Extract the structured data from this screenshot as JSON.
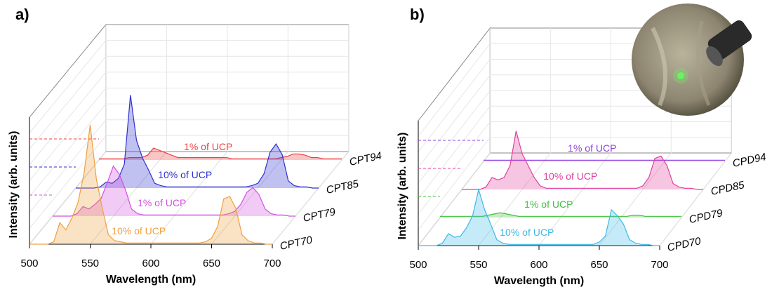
{
  "chart_data": [
    {
      "type": "waterfall",
      "panel": "a)",
      "xlabel": "Wavelength (nm)",
      "ylabel": "Intensity (arb. units)",
      "xlim": [
        500,
        700
      ],
      "xticks": [
        500,
        550,
        600,
        650,
        700
      ],
      "x": [
        500,
        505,
        510,
        515,
        520,
        525,
        530,
        535,
        540,
        545,
        550,
        555,
        560,
        565,
        570,
        575,
        580,
        585,
        590,
        595,
        600,
        605,
        610,
        615,
        620,
        625,
        630,
        635,
        640,
        645,
        650,
        655,
        660,
        665,
        670,
        675,
        680,
        685,
        690,
        695,
        700
      ],
      "series": [
        {
          "name": "CPT70",
          "annotation": "10% of UCP",
          "color": "#f0a040",
          "values": [
            0,
            0,
            0,
            0,
            0.02,
            0.18,
            0.12,
            0.22,
            0.35,
            0.6,
            1.0,
            0.55,
            0.3,
            0.08,
            0.03,
            0.02,
            0.01,
            0.01,
            0.01,
            0.01,
            0.01,
            0.01,
            0.01,
            0.01,
            0.01,
            0.01,
            0.01,
            0.01,
            0.01,
            0.02,
            0.05,
            0.15,
            0.38,
            0.4,
            0.3,
            0.08,
            0.03,
            0.01,
            0.01,
            0,
            0
          ]
        },
        {
          "name": "CPT79",
          "annotation": "1% of UCP",
          "color": "#d050e0",
          "values": [
            0,
            0,
            0,
            0,
            0.02,
            0.08,
            0.06,
            0.1,
            0.15,
            0.28,
            0.42,
            0.35,
            0.22,
            0.06,
            0.02,
            0.01,
            0.01,
            0.01,
            0.01,
            0.01,
            0.01,
            0.01,
            0.01,
            0.01,
            0.01,
            0.01,
            0.01,
            0.01,
            0.01,
            0.02,
            0.04,
            0.1,
            0.2,
            0.24,
            0.18,
            0.06,
            0.02,
            0.01,
            0.01,
            0,
            0
          ]
        },
        {
          "name": "CPT85",
          "annotation": "10% of UCP",
          "color": "#3030d0",
          "values": [
            0,
            0,
            0,
            0,
            0.01,
            0.05,
            0.04,
            0.08,
            0.2,
            0.78,
            0.4,
            0.25,
            0.15,
            0.04,
            0.02,
            0.01,
            0.01,
            0.01,
            0.01,
            0.01,
            0.01,
            0.01,
            0.01,
            0.01,
            0.01,
            0.01,
            0.01,
            0.01,
            0.01,
            0.02,
            0.04,
            0.12,
            0.3,
            0.37,
            0.28,
            0.06,
            0.02,
            0.01,
            0.01,
            0,
            0
          ]
        },
        {
          "name": "CPT94",
          "annotation": "1% of UCP",
          "color": "#f04040",
          "values": [
            0.01,
            0.01,
            0.01,
            0.01,
            0.01,
            0.02,
            0.02,
            0.02,
            0.04,
            0.1,
            0.08,
            0.06,
            0.04,
            0.02,
            0.02,
            0.02,
            0.02,
            0.02,
            0.02,
            0.02,
            0.02,
            0.02,
            0.01,
            0.01,
            0.01,
            0.01,
            0.01,
            0.01,
            0.01,
            0.01,
            0.02,
            0.03,
            0.05,
            0.05,
            0.04,
            0.02,
            0.02,
            0.01,
            0.01,
            0.01,
            0.01
          ]
        }
      ]
    },
    {
      "type": "waterfall",
      "panel": "b)",
      "xlabel": "Wavelength (nm)",
      "ylabel": "Intensity (arb. units)",
      "xlim": [
        500,
        700
      ],
      "xticks": [
        500,
        550,
        600,
        650,
        700
      ],
      "x": [
        500,
        505,
        510,
        515,
        520,
        525,
        530,
        535,
        540,
        545,
        550,
        555,
        560,
        565,
        570,
        575,
        580,
        585,
        590,
        595,
        600,
        605,
        610,
        615,
        620,
        625,
        630,
        635,
        640,
        645,
        650,
        655,
        660,
        665,
        670,
        675,
        680,
        685,
        690,
        695,
        700
      ],
      "series": [
        {
          "name": "CPD70",
          "annotation": "10% of UCP",
          "color": "#40b8e8",
          "values": [
            0,
            0,
            0,
            0,
            0.02,
            0.1,
            0.07,
            0.08,
            0.15,
            0.25,
            0.47,
            0.3,
            0.18,
            0.05,
            0.02,
            0.01,
            0.01,
            0.01,
            0.01,
            0.01,
            0.01,
            0.01,
            0.01,
            0.01,
            0.01,
            0.01,
            0.01,
            0.01,
            0.01,
            0.01,
            0.03,
            0.08,
            0.3,
            0.25,
            0.18,
            0.05,
            0.02,
            0.01,
            0.01,
            0,
            0
          ]
        },
        {
          "name": "CPD79",
          "annotation": "1% of UCP",
          "color": "#40c040",
          "values": [
            0.01,
            0.01,
            0.01,
            0.01,
            0.01,
            0.01,
            0.01,
            0.01,
            0.02,
            0.03,
            0.04,
            0.03,
            0.02,
            0.01,
            0.01,
            0.01,
            0.01,
            0.01,
            0.01,
            0.01,
            0.01,
            0.01,
            0.01,
            0.01,
            0.01,
            0.01,
            0.01,
            0.01,
            0.01,
            0.01,
            0.01,
            0.01,
            0.02,
            0.02,
            0.01,
            0.01,
            0.01,
            0.01,
            0.01,
            0.01,
            0.01
          ]
        },
        {
          "name": "CPD85",
          "annotation": "10% of UCP",
          "color": "#e040a0",
          "values": [
            0,
            0,
            0,
            0,
            0.02,
            0.1,
            0.08,
            0.1,
            0.2,
            0.49,
            0.3,
            0.2,
            0.1,
            0.03,
            0.01,
            0.01,
            0.01,
            0.01,
            0.01,
            0.01,
            0.01,
            0.01,
            0.01,
            0.01,
            0.01,
            0.01,
            0.01,
            0.01,
            0.01,
            0.01,
            0.03,
            0.1,
            0.26,
            0.28,
            0.2,
            0.05,
            0.02,
            0.01,
            0.01,
            0,
            0
          ]
        },
        {
          "name": "CPD94",
          "annotation": "1% of UCP",
          "color": "#9040e0",
          "values": [
            0.01,
            0.01,
            0.01,
            0.01,
            0.01,
            0.01,
            0.01,
            0.01,
            0.01,
            0.01,
            0.01,
            0.01,
            0.01,
            0.01,
            0.01,
            0.01,
            0.01,
            0.01,
            0.01,
            0.01,
            0.01,
            0.01,
            0.01,
            0.01,
            0.01,
            0.01,
            0.01,
            0.01,
            0.01,
            0.01,
            0.01,
            0.01,
            0.01,
            0.01,
            0.01,
            0.01,
            0.01,
            0.01,
            0.01,
            0.01,
            0.01
          ]
        }
      ]
    }
  ]
}
